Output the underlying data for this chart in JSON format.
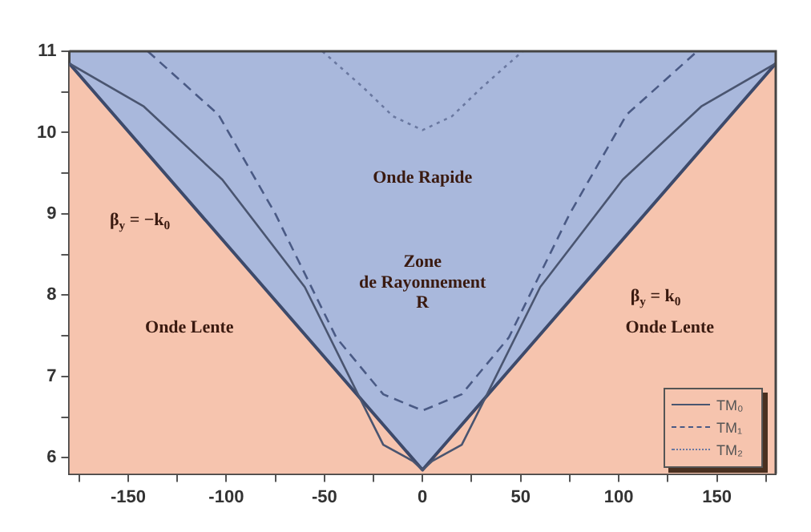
{
  "chart_data": {
    "type": "line",
    "xlim": [
      -180,
      180
    ],
    "xticks": [
      {
        "value": -175,
        "label": null
      },
      -150,
      {
        "value": -125,
        "label": null
      },
      -100,
      {
        "value": -75,
        "label": null
      },
      -50,
      {
        "value": -25,
        "label": null
      },
      0,
      {
        "value": 25,
        "label": null
      },
      50,
      {
        "value": 75,
        "label": null
      },
      100,
      {
        "value": 125,
        "label": null
      },
      150,
      {
        "value": 175,
        "label": null
      }
    ],
    "ylim": [
      5.8,
      11
    ],
    "yticks": [
      6,
      {
        "value": 6.5,
        "label": null
      },
      7,
      {
        "value": 7.5,
        "label": null
      },
      8,
      {
        "value": 8.5,
        "label": null
      },
      9,
      {
        "value": 9.5,
        "label": null
      },
      10,
      {
        "value": 10.5,
        "label": null
      },
      11
    ],
    "legend": "bottom right",
    "series": [
      {
        "type": "area",
        "color": "#f6c4ae",
        "x": [
          -180,
          0,
          180
        ],
        "values": [
          10.85,
          5.85,
          10.85
        ]
      },
      {
        "name": "TM₀",
        "color": "#4a5570",
        "line_style": "solid",
        "x": [
          -180,
          -142,
          -102,
          -60,
          -30,
          -20,
          -5,
          0,
          5,
          20,
          30,
          60,
          102,
          142,
          180
        ],
        "values": [
          10.85,
          10.32,
          9.42,
          8.1,
          6.64,
          6.16,
          5.96,
          5.85,
          5.96,
          6.16,
          6.64,
          8.1,
          9.42,
          10.32,
          10.85
        ]
      },
      {
        "name": "TM₁",
        "color": "#4a5a85",
        "line_style": "dashed",
        "x": [
          -140,
          -104,
          -75,
          -44,
          -20,
          0,
          20,
          44,
          75,
          104,
          140
        ],
        "values": [
          11,
          10.22,
          9.0,
          7.48,
          6.78,
          6.58,
          6.78,
          7.48,
          9.0,
          10.22,
          11
        ]
      },
      {
        "name": "TM₂",
        "color": "#6a78a0",
        "line_style": "dotted",
        "x": [
          -51,
          -30,
          -15,
          0,
          15,
          30,
          51
        ],
        "values": [
          11,
          10.55,
          10.2,
          10.03,
          10.2,
          10.55,
          11
        ]
      }
    ],
    "annotations": [
      "Onde Rapide",
      "Zone",
      "de Rayonnement",
      "R",
      "Onde Lente",
      "Onde Lente",
      "β$_{y}$ = −k$_{0}$",
      "β$_{y}$ = k$_{0}$"
    ]
  }
}
